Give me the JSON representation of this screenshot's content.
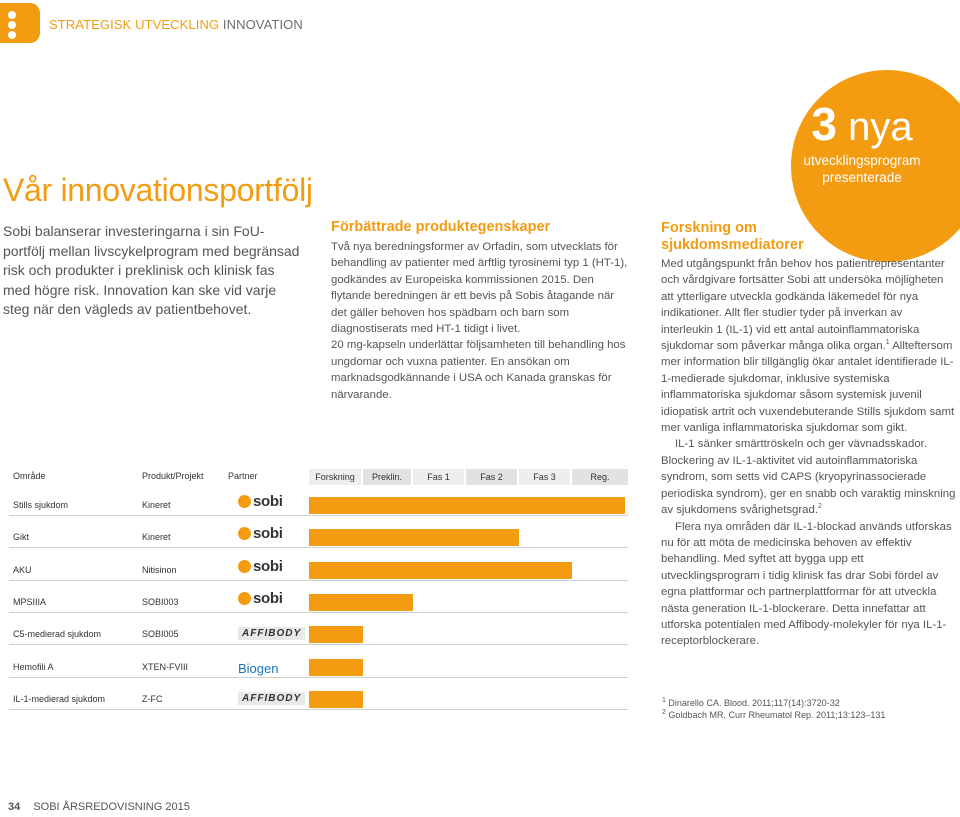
{
  "header": {
    "section_part1": "STRATEGISK UTVECKLING",
    "section_part2": "INNOVATION"
  },
  "title": "Vår innovationsportfölj",
  "intro": "Sobi balanserar investeringarna i sin FoU-portfölj mellan livscykelprogram med begränsad risk och produkter i preklinisk och klinisk fas med högre risk. Innovation kan ske vid varje steg när den vägleds av patientbehovet.",
  "middle": {
    "heading": "Förbättrade produktegenskaper",
    "p1": "Två nya beredningsformer av Orfadin, som utvecklats för behandling av patienter med ärftlig tyrosinemi typ 1 (HT-1), godkändes av Europeiska kommissionen 2015. Den flytande beredningen är ett bevis på Sobis åtagande när det gäller behoven hos spädbarn och barn som diagnostiserats med HT-1 tidigt i livet.",
    "p2": "20 mg-kapseln underlättar följsamheten till behandling hos ungdomar och vuxna patienter. En ansökan om marknadsgodkännande i USA och Kanada granskas för närvarande."
  },
  "bubble": {
    "number": "3",
    "word": "nya",
    "label": "utvecklingsprogram presenterade"
  },
  "right": {
    "heading": "Forskning om sjukdomsmediatorer",
    "p1a": "Med utgångspunkt från behov hos patientrepresentanter och vårdgivare fortsätter Sobi att undersöka möjligheten att ytterligare utveckla godkända läkemedel för nya indikationer. Allt fler studier tyder på inverkan av interleukin 1 (IL-1) vid ett antal autoinflammatoriska sjukdomar som påverkar många olika organ.",
    "p1_ref": "1",
    "p1b": " Allteftersom mer information blir tillgänglig ökar antalet identifierade IL-1-medierade sjukdomar, inklusive systemiska inflammatoriska sjukdomar såsom systemisk juvenil idiopatisk artrit och vuxendebuterande Stills sjukdom samt mer vanliga inflammatoriska sjukdomar som gikt.",
    "p2a": "IL-1 sänker smärttröskeln och ger vävnadsskador. Blockering av IL-1-aktivitet vid autoinflammatoriska syndrom, som setts vid CAPS (kryopyrinassocierade periodiska syndrom), ger en snabb och varaktig minskning av sjukdomens svårighetsgrad.",
    "p2_ref": "2",
    "p3": "Flera nya områden där IL-1-blockad används utforskas nu för att möta de medicinska behoven av effektiv behandling. Med syftet att bygga upp ett utvecklingsprogram i tidig klinisk fas drar Sobi fördel av egna plattformar och partnerplattformar för att utveckla nästa generation IL-1-blockerare. Detta innefattar att utforska potentialen med Affibody-molekyler för nya IL-1-receptorblockerare."
  },
  "pipeline": {
    "headers": {
      "area": "Område",
      "project": "Produkt/Projekt",
      "partner": "Partner",
      "research": "Forskning",
      "preclin": "Preklin.",
      "phase1": "Fas 1",
      "phase2": "Fas 2",
      "phase3": "Fas 3",
      "reg": "Reg."
    },
    "rows": [
      {
        "area": "Stills sjukdom",
        "project": "Kineret",
        "partner": "sobi",
        "stage_end": 625
      },
      {
        "area": "Gikt",
        "project": "Kineret",
        "partner": "sobi",
        "stage_end": 519
      },
      {
        "area": "AKU",
        "project": "Nitisinon",
        "partner": "sobi",
        "stage_end": 572
      },
      {
        "area": "MPSIIIA",
        "project": "SOBI003",
        "partner": "sobi",
        "stage_end": 413
      },
      {
        "area": "C5-medierad sjukdom",
        "project": "SOBI005",
        "partner": "AFFIBODY",
        "stage_end": 363
      },
      {
        "area": "Hemofili A",
        "project": "XTEN-FVIII",
        "partner": "Biogen",
        "stage_end": 363
      },
      {
        "area": "IL-1-medierad sjukdom",
        "project": "Z-FC",
        "partner": "AFFIBODY",
        "stage_end": 363
      }
    ]
  },
  "footnotes": {
    "f1_num": "1",
    "f1": "Dinarello CA. Blood. 2011;117(14):3720-32",
    "f2_num": "2",
    "f2": "Goldbach MR. Curr Rheumatol Rep. 2011;13:123–131"
  },
  "footer": {
    "page": "34",
    "text": "SOBI ÅRSREDOVISNING 2015"
  }
}
